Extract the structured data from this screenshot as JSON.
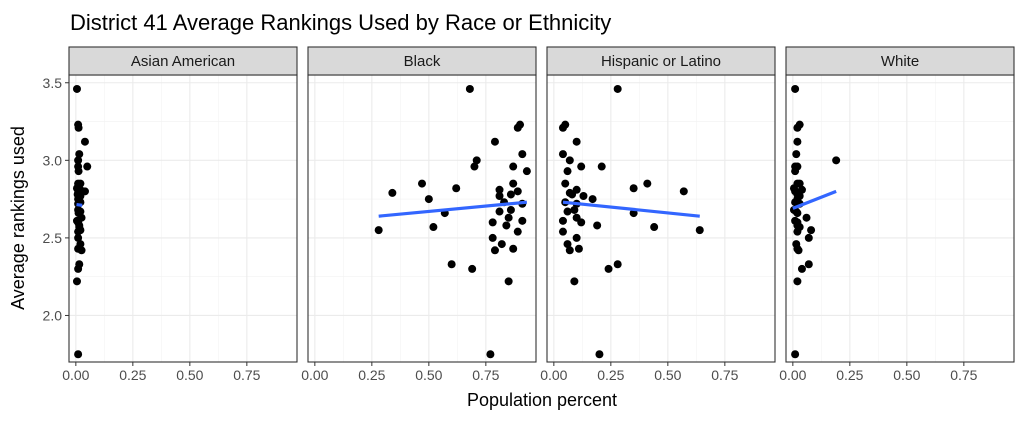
{
  "chart_data": {
    "type": "scatter",
    "title": "District 41 Average Rankings Used by Race or Ethnicity",
    "xlabel": "Population percent",
    "ylabel": "Average rankings used",
    "xlim": [
      -0.03,
      0.97
    ],
    "ylim": [
      1.7,
      3.55
    ],
    "x_ticks": [
      0.0,
      0.25,
      0.5,
      0.75
    ],
    "x_tick_labels": [
      "0.00",
      "0.25",
      "0.50",
      "0.75"
    ],
    "y_ticks": [
      2.0,
      2.5,
      3.0,
      3.5
    ],
    "y_tick_labels": [
      "2.0",
      "2.5",
      "3.0",
      "3.5"
    ],
    "grid": true,
    "theme": "bw",
    "point_color": "#000000",
    "trend_color": "#3366ff",
    "strip_fill": "#d9d9d9",
    "y": [
      3.46,
      3.23,
      3.21,
      3.12,
      3.04,
      3.0,
      2.96,
      2.96,
      2.93,
      2.85,
      2.85,
      2.82,
      2.81,
      2.8,
      2.79,
      2.78,
      2.77,
      2.75,
      2.73,
      2.72,
      2.68,
      2.67,
      2.66,
      2.63,
      2.61,
      2.6,
      2.58,
      2.57,
      2.55,
      2.54,
      2.5,
      2.46,
      2.43,
      2.42,
      2.33,
      2.3,
      2.22,
      1.75
    ],
    "facets": [
      {
        "name": "Asian American",
        "x": [
          0.005,
          0.01,
          0.012,
          0.04,
          0.015,
          0.01,
          0.05,
          0.01,
          0.012,
          0.01,
          0.02,
          0.005,
          0.02,
          0.04,
          0.01,
          0.008,
          0.02,
          0.01,
          0.02,
          0.01,
          0.01,
          0.02,
          0.012,
          0.025,
          0.005,
          0.01,
          0.015,
          0.015,
          0.02,
          0.01,
          0.01,
          0.02,
          0.01,
          0.025,
          0.015,
          0.01,
          0.005,
          0.01
        ],
        "trend": {
          "x": [
            0.003,
            0.028
          ],
          "y": [
            2.715,
            2.71
          ]
        }
      },
      {
        "name": "Black",
        "x": [
          0.68,
          0.9,
          0.89,
          0.79,
          0.91,
          0.71,
          0.7,
          0.87,
          0.93,
          0.47,
          0.87,
          0.62,
          0.81,
          0.89,
          0.34,
          0.86,
          0.81,
          0.5,
          0.83,
          0.91,
          0.86,
          0.81,
          0.57,
          0.85,
          0.91,
          0.78,
          0.84,
          0.52,
          0.28,
          0.89,
          0.78,
          0.82,
          0.87,
          0.79,
          0.6,
          0.69,
          0.85,
          0.77
        ],
        "trend": {
          "x": [
            0.28,
            0.93
          ],
          "y": [
            2.64,
            2.73
          ]
        }
      },
      {
        "name": "Hispanic or Latino",
        "x": [
          0.28,
          0.05,
          0.04,
          0.1,
          0.04,
          0.07,
          0.21,
          0.12,
          0.06,
          0.41,
          0.05,
          0.35,
          0.1,
          0.57,
          0.07,
          0.08,
          0.13,
          0.17,
          0.05,
          0.1,
          0.09,
          0.06,
          0.35,
          0.1,
          0.04,
          0.12,
          0.19,
          0.44,
          0.64,
          0.04,
          0.1,
          0.06,
          0.11,
          0.07,
          0.28,
          0.24,
          0.09,
          0.2
        ],
        "trend": {
          "x": [
            0.04,
            0.64
          ],
          "y": [
            2.73,
            2.64
          ]
        }
      },
      {
        "name": "White",
        "x": [
          0.01,
          0.03,
          0.02,
          0.02,
          0.015,
          0.19,
          0.01,
          0.02,
          0.01,
          0.02,
          0.03,
          0.005,
          0.04,
          0.01,
          0.02,
          0.02,
          0.03,
          0.02,
          0.01,
          0.03,
          0.005,
          0.015,
          0.02,
          0.06,
          0.01,
          0.02,
          0.02,
          0.03,
          0.08,
          0.02,
          0.07,
          0.015,
          0.02,
          0.025,
          0.07,
          0.04,
          0.02,
          0.01
        ],
        "trend": {
          "x": [
            0.0,
            0.19
          ],
          "y": [
            2.69,
            2.8
          ]
        }
      }
    ]
  }
}
